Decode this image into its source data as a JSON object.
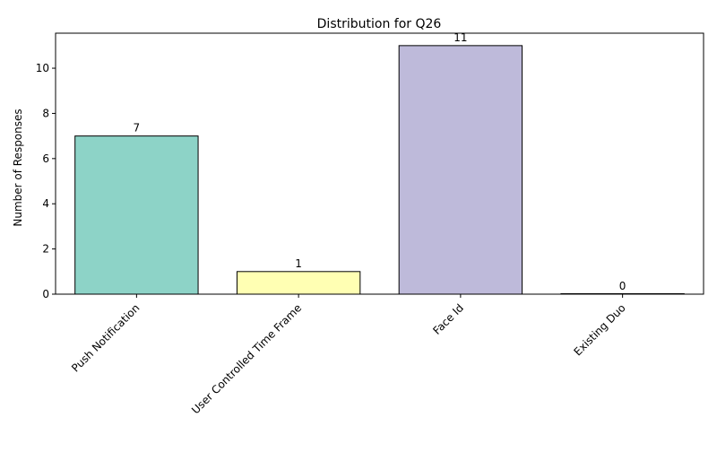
{
  "chart_data": {
    "type": "bar",
    "title": "Distribution for Q26",
    "xlabel": "",
    "ylabel": "Number of Responses",
    "categories": [
      "Push Notification",
      "User Controlled Time Frame",
      "Face Id",
      "Existing Duo"
    ],
    "values": [
      7,
      1,
      11,
      0
    ],
    "ylim": [
      0,
      11.55
    ],
    "yticks": [
      0,
      2,
      4,
      6,
      8,
      10
    ],
    "colors": [
      "#8dd3c7",
      "#ffffb3",
      "#bebada",
      "#fb8072"
    ],
    "edge_color": "#000000",
    "grid": false,
    "legend": "none"
  }
}
